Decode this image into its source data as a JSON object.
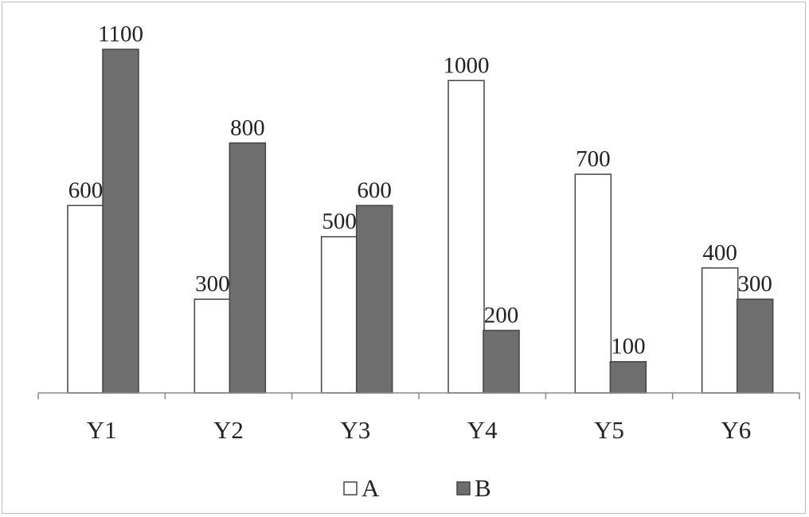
{
  "chart_data": {
    "type": "bar",
    "title": "",
    "xlabel": "",
    "ylabel": "",
    "categories": [
      "Y1",
      "Y2",
      "Y3",
      "Y4",
      "Y5",
      "Y6"
    ],
    "series": [
      {
        "name": "A",
        "values": [
          600,
          300,
          500,
          1000,
          700,
          400
        ],
        "color": "#ffffff",
        "stroke": "#444444"
      },
      {
        "name": "B",
        "values": [
          1100,
          800,
          600,
          200,
          100,
          300
        ],
        "color": "#6e6e6e",
        "stroke": "#444444"
      }
    ],
    "ylim": [
      0,
      1100
    ],
    "grid": false,
    "data_labels": true,
    "legend_position": "bottom-center"
  }
}
